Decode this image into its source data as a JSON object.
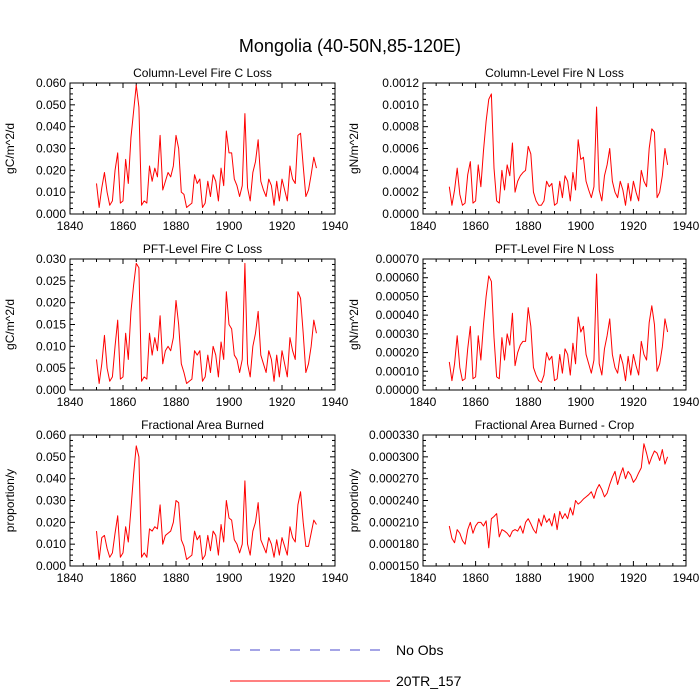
{
  "figure": {
    "title": "Mongolia (40-50N,85-120E)",
    "legend": [
      {
        "label": "No Obs",
        "color": "#4a4acc",
        "style": "dashed"
      },
      {
        "label": "20TR_157",
        "color": "#ff0000",
        "style": "solid"
      }
    ]
  },
  "chart_data": [
    {
      "type": "line",
      "title": "Column-Level Fire C Loss",
      "ylabel": "gC/m^2/d",
      "xlim": [
        1840,
        1940
      ],
      "xticks": [
        1840,
        1860,
        1880,
        1900,
        1920,
        1940
      ],
      "ylim": [
        0,
        0.06
      ],
      "yticks": [
        "0.000",
        "0.010",
        "0.020",
        "0.030",
        "0.040",
        "0.050",
        "0.060"
      ],
      "x_start": 1850,
      "series": [
        {
          "name": "20TR_157",
          "color": "#ff0000",
          "values": [
            0.014,
            0.003,
            0.012,
            0.019,
            0.01,
            0.004,
            0.006,
            0.02,
            0.028,
            0.005,
            0.006,
            0.025,
            0.014,
            0.035,
            0.047,
            0.059,
            0.049,
            0.004,
            0.006,
            0.005,
            0.022,
            0.015,
            0.021,
            0.017,
            0.036,
            0.011,
            0.015,
            0.019,
            0.017,
            0.022,
            0.036,
            0.03,
            0.01,
            0.009,
            0.003,
            0.004,
            0.005,
            0.018,
            0.014,
            0.016,
            0.003,
            0.005,
            0.015,
            0.008,
            0.018,
            0.015,
            0.006,
            0.021,
            0.013,
            0.038,
            0.028,
            0.028,
            0.016,
            0.013,
            0.008,
            0.013,
            0.046,
            0.012,
            0.006,
            0.019,
            0.024,
            0.034,
            0.015,
            0.011,
            0.008,
            0.016,
            0.013,
            0.004,
            0.015,
            0.006,
            0.016,
            0.011,
            0.006,
            0.022,
            0.016,
            0.014,
            0.036,
            0.037,
            0.022,
            0.008,
            0.011,
            0.018,
            0.026,
            0.021
          ]
        }
      ]
    },
    {
      "type": "line",
      "title": "Column-Level Fire N Loss",
      "ylabel": "gN/m^2/d",
      "xlim": [
        1840,
        1940
      ],
      "xticks": [
        1840,
        1860,
        1880,
        1900,
        1920,
        1940
      ],
      "ylim": [
        0,
        0.0012
      ],
      "yticks": [
        "0.0000",
        "0.0002",
        "0.0004",
        "0.0006",
        "0.0008",
        "0.0010",
        "0.0012"
      ],
      "x_start": 1850,
      "series": [
        {
          "name": "20TR_157",
          "color": "#ff0000",
          "values": [
            0.00025,
            8e-05,
            0.00022,
            0.00042,
            0.00018,
            8e-05,
            0.0001,
            0.00036,
            0.00048,
            0.0001,
            0.00012,
            0.00045,
            0.00025,
            0.00058,
            0.00085,
            0.00105,
            0.0011,
            0.00042,
            0.00012,
            0.0001,
            0.0004,
            0.00022,
            0.00045,
            0.00035,
            0.00065,
            0.0002,
            0.0003,
            0.00035,
            0.00038,
            0.0004,
            0.00062,
            0.00055,
            0.0002,
            0.00012,
            8e-05,
            8e-05,
            0.00012,
            0.0003,
            0.00025,
            0.00028,
            8e-05,
            0.0001,
            0.0003,
            0.00015,
            0.00035,
            0.0003,
            0.00012,
            0.00038,
            0.00022,
            0.00068,
            0.0005,
            0.00052,
            0.0003,
            0.00022,
            0.00015,
            0.00025,
            0.00098,
            0.00022,
            0.00012,
            0.00035,
            0.00045,
            0.0006,
            0.0003,
            0.0002,
            0.00015,
            0.0003,
            0.00022,
            8e-05,
            0.00028,
            0.00012,
            0.0003,
            0.0002,
            0.00012,
            0.0004,
            0.0003,
            0.00025,
            0.0006,
            0.00078,
            0.00075,
            0.00015,
            0.0002,
            0.00035,
            0.0006,
            0.00045
          ]
        }
      ]
    },
    {
      "type": "line",
      "title": "PFT-Level Fire C Loss",
      "ylabel": "gC/m^2/d",
      "xlim": [
        1840,
        1940
      ],
      "xticks": [
        1840,
        1860,
        1880,
        1900,
        1920,
        1940
      ],
      "ylim": [
        0,
        0.03
      ],
      "yticks": [
        "0.000",
        "0.005",
        "0.010",
        "0.015",
        "0.020",
        "0.025",
        "0.030"
      ],
      "x_start": 1850,
      "series": [
        {
          "name": "20TR_157",
          "color": "#ff0000",
          "values": [
            0.007,
            0.0015,
            0.006,
            0.0125,
            0.005,
            0.002,
            0.003,
            0.01,
            0.016,
            0.0025,
            0.003,
            0.013,
            0.007,
            0.018,
            0.024,
            0.029,
            0.028,
            0.002,
            0.003,
            0.0025,
            0.013,
            0.008,
            0.012,
            0.009,
            0.017,
            0.006,
            0.009,
            0.01,
            0.009,
            0.012,
            0.0205,
            0.015,
            0.006,
            0.004,
            0.0015,
            0.002,
            0.0025,
            0.009,
            0.008,
            0.009,
            0.002,
            0.003,
            0.008,
            0.004,
            0.01,
            0.008,
            0.003,
            0.011,
            0.007,
            0.0225,
            0.015,
            0.014,
            0.008,
            0.007,
            0.004,
            0.007,
            0.029,
            0.006,
            0.003,
            0.01,
            0.013,
            0.018,
            0.008,
            0.006,
            0.004,
            0.009,
            0.007,
            0.002,
            0.008,
            0.003,
            0.009,
            0.006,
            0.003,
            0.012,
            0.009,
            0.007,
            0.0225,
            0.021,
            0.013,
            0.004,
            0.006,
            0.01,
            0.016,
            0.013
          ]
        }
      ]
    },
    {
      "type": "line",
      "title": "PFT-Level Fire N Loss",
      "ylabel": "gN/m^2/d",
      "xlim": [
        1840,
        1940
      ],
      "xticks": [
        1840,
        1860,
        1880,
        1900,
        1920,
        1940
      ],
      "ylim": [
        0,
        0.0007
      ],
      "yticks": [
        "0.00000",
        "0.00010",
        "0.00020",
        "0.00030",
        "0.00040",
        "0.00050",
        "0.00060",
        "0.00070"
      ],
      "x_start": 1850,
      "series": [
        {
          "name": "20TR_157",
          "color": "#ff0000",
          "values": [
            0.00015,
            5e-05,
            0.00014,
            0.00029,
            0.00012,
            5e-05,
            6e-05,
            0.00022,
            0.00034,
            6e-05,
            7e-05,
            0.00029,
            0.00016,
            0.00035,
            0.0005,
            0.00061,
            0.00058,
            0.00028,
            7e-05,
            6e-05,
            0.00028,
            0.00016,
            0.0003,
            0.00024,
            0.00041,
            0.00013,
            0.0002,
            0.00024,
            0.00026,
            0.00026,
            0.00044,
            0.00034,
            0.00012,
            8e-05,
            5e-05,
            4e-05,
            8e-05,
            0.0002,
            0.00016,
            0.00018,
            5e-05,
            6e-05,
            0.00019,
            9e-05,
            0.00022,
            0.00019,
            8e-05,
            0.00025,
            0.00014,
            0.00039,
            0.00031,
            0.00034,
            0.00019,
            0.00014,
            9e-05,
            0.00016,
            0.00062,
            0.00014,
            8e-05,
            0.00022,
            0.00029,
            0.00038,
            0.00019,
            0.00012,
            9e-05,
            0.00019,
            0.00014,
            5e-05,
            0.00018,
            8e-05,
            0.00019,
            0.00013,
            8e-05,
            0.00026,
            0.00019,
            0.00016,
            0.00036,
            0.00045,
            0.00035,
            0.0001,
            0.00014,
            0.00023,
            0.00038,
            0.00031
          ]
        }
      ]
    },
    {
      "type": "line",
      "title": "Fractional Area Burned",
      "ylabel": "proportion/y",
      "xlim": [
        1840,
        1940
      ],
      "xticks": [
        1840,
        1860,
        1880,
        1900,
        1920,
        1940
      ],
      "ylim": [
        0,
        0.06
      ],
      "yticks": [
        "0.000",
        "0.010",
        "0.020",
        "0.030",
        "0.040",
        "0.050",
        "0.060"
      ],
      "x_start": 1850,
      "series": [
        {
          "name": "20TR_157",
          "color": "#ff0000",
          "values": [
            0.016,
            0.003,
            0.013,
            0.014,
            0.008,
            0.004,
            0.006,
            0.015,
            0.023,
            0.004,
            0.006,
            0.018,
            0.011,
            0.026,
            0.042,
            0.055,
            0.05,
            0.004,
            0.006,
            0.004,
            0.017,
            0.016,
            0.018,
            0.017,
            0.028,
            0.01,
            0.014,
            0.015,
            0.016,
            0.02,
            0.03,
            0.029,
            0.012,
            0.009,
            0.003,
            0.004,
            0.005,
            0.016,
            0.012,
            0.014,
            0.003,
            0.005,
            0.014,
            0.007,
            0.016,
            0.014,
            0.005,
            0.019,
            0.011,
            0.03,
            0.022,
            0.021,
            0.012,
            0.01,
            0.006,
            0.01,
            0.039,
            0.01,
            0.005,
            0.016,
            0.02,
            0.029,
            0.012,
            0.009,
            0.006,
            0.013,
            0.01,
            0.004,
            0.012,
            0.005,
            0.013,
            0.009,
            0.005,
            0.018,
            0.013,
            0.011,
            0.028,
            0.034,
            0.02,
            0.009,
            0.009,
            0.015,
            0.021,
            0.019
          ]
        }
      ]
    },
    {
      "type": "line",
      "title": "Fractional Area Burned - Crop",
      "ylabel": "proportion/y",
      "xlim": [
        1840,
        1940
      ],
      "xticks": [
        1840,
        1860,
        1880,
        1900,
        1920,
        1940
      ],
      "ylim": [
        0.00015,
        0.00033
      ],
      "yticks": [
        "0.000150",
        "0.000180",
        "0.000210",
        "0.000240",
        "0.000270",
        "0.000300",
        "0.000330"
      ],
      "x_start": 1850,
      "series": [
        {
          "name": "20TR_157",
          "color": "#ff0000",
          "values": [
            0.000205,
            0.000188,
            0.000182,
            0.0002,
            0.000195,
            0.000185,
            0.00018,
            0.0002,
            0.00021,
            0.000195,
            0.000205,
            0.00021,
            0.00021,
            0.000205,
            0.000212,
            0.000175,
            0.000215,
            0.000218,
            0.000222,
            0.00019,
            0.0002,
            0.000198,
            0.000195,
            0.00019,
            0.000198,
            0.0002,
            0.000198,
            0.000205,
            0.000195,
            0.00021,
            0.000215,
            0.000208,
            0.0002,
            0.000195,
            0.000215,
            0.000205,
            0.00022,
            0.00021,
            0.000215,
            0.000205,
            0.000222,
            0.0002,
            0.000225,
            0.000215,
            0.000222,
            0.000215,
            0.00023,
            0.00022,
            0.00024,
            0.000235,
            0.000238,
            0.000242,
            0.000245,
            0.000248,
            0.000252,
            0.000243,
            0.000255,
            0.000262,
            0.000255,
            0.000245,
            0.00025,
            0.000262,
            0.000272,
            0.00028,
            0.000262,
            0.000275,
            0.000285,
            0.00027,
            0.00028,
            0.000275,
            0.000265,
            0.00027,
            0.000278,
            0.000285,
            0.000318,
            0.000305,
            0.00029,
            0.0003,
            0.000308,
            0.000305,
            0.000295,
            0.00031,
            0.00029,
            0.0003
          ]
        }
      ]
    }
  ]
}
